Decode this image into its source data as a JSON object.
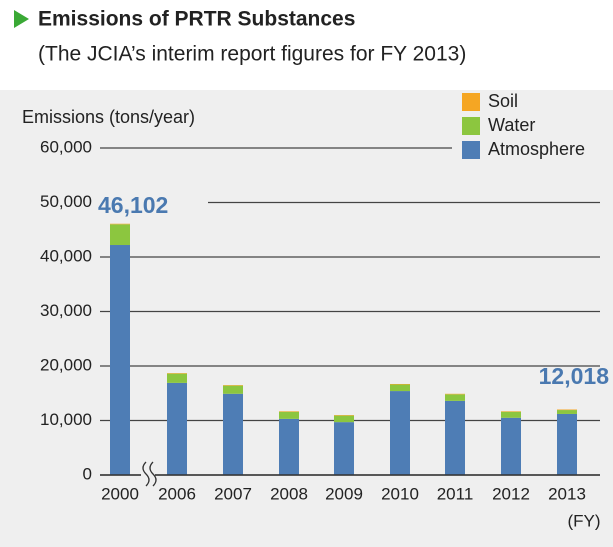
{
  "chart_data": {
    "type": "stacked-bar",
    "title": "Emissions of PRTR Substances",
    "subtitle": "(The JCIA’s interim report figures for FY 2013)",
    "y_axis_label": "Emissions (tons/year)",
    "x_axis_label": "(FY)",
    "categories": [
      "2000",
      "2006",
      "2007",
      "2008",
      "2009",
      "2010",
      "2011",
      "2012",
      "2013"
    ],
    "series": [
      {
        "name": "Atmosphere",
        "color": "#4e7db5",
        "values": [
          42200,
          16900,
          14900,
          10300,
          9700,
          15400,
          13600,
          10500,
          11200
        ]
      },
      {
        "name": "Water",
        "color": "#8cc63f",
        "values": [
          3800,
          1700,
          1500,
          1300,
          1200,
          1200,
          1200,
          1100,
          718
        ]
      },
      {
        "name": "Soil",
        "color": "#f5a623",
        "values": [
          102,
          100,
          100,
          100,
          100,
          100,
          100,
          100,
          100
        ]
      }
    ],
    "annotations": [
      "46,102",
      "12,018"
    ],
    "ylim": [
      0,
      60000
    ],
    "yticks": [
      0,
      {
        "value": 10000,
        "label": "10,000"
      },
      {
        "value": 20000,
        "label": "20,000"
      },
      {
        "value": 30000,
        "label": "30,000"
      },
      {
        "value": 40000,
        "label": "40,000"
      },
      {
        "value": 50000,
        "label": "50,000"
      },
      {
        "value": 60000,
        "label": "60,000"
      }
    ],
    "grid": true,
    "legend": "top-right"
  }
}
